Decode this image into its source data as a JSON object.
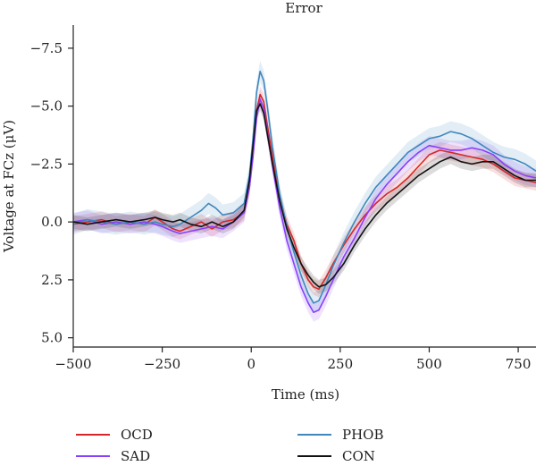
{
  "chart_data": {
    "type": "line",
    "title": "Error",
    "xlabel": "Time (ms)",
    "ylabel": "Voltage at FCz (μV)",
    "xlim": [
      -500,
      800
    ],
    "ylim": [
      -8.5,
      5.4
    ],
    "y_inverted": true,
    "grid": false,
    "legend_position": "bottom",
    "x_ticks": [
      -500,
      -250,
      0,
      250,
      500,
      750
    ],
    "x_tick_labels": [
      "−500",
      "−250",
      "0",
      "250",
      "500",
      "750"
    ],
    "y_ticks": [
      -7.5,
      -5.0,
      -2.5,
      0.0,
      2.5,
      5.0
    ],
    "y_tick_labels": [
      "−7.5",
      "−5.0",
      "−2.5",
      "0.0",
      "2.5",
      "5.0"
    ],
    "series": [
      {
        "name": "OCD",
        "color": "#d62728",
        "band": 0.35,
        "points": [
          [
            -500,
            0.1
          ],
          [
            -460,
            0.0
          ],
          [
            -420,
            -0.1
          ],
          [
            -380,
            0.1
          ],
          [
            -340,
            0.0
          ],
          [
            -300,
            0.1
          ],
          [
            -270,
            -0.2
          ],
          [
            -250,
            0.0
          ],
          [
            -220,
            0.3
          ],
          [
            -200,
            0.4
          ],
          [
            -170,
            0.2
          ],
          [
            -140,
            0.0
          ],
          [
            -110,
            0.3
          ],
          [
            -80,
            0.0
          ],
          [
            -50,
            -0.1
          ],
          [
            -20,
            -0.4
          ],
          [
            -5,
            -1.5
          ],
          [
            5,
            -3.0
          ],
          [
            15,
            -4.8
          ],
          [
            25,
            -5.5
          ],
          [
            35,
            -5.2
          ],
          [
            45,
            -4.2
          ],
          [
            60,
            -2.8
          ],
          [
            80,
            -1.0
          ],
          [
            100,
            0.1
          ],
          [
            120,
            0.8
          ],
          [
            140,
            1.8
          ],
          [
            160,
            2.5
          ],
          [
            175,
            2.8
          ],
          [
            190,
            2.9
          ],
          [
            210,
            2.4
          ],
          [
            230,
            1.8
          ],
          [
            260,
            1.0
          ],
          [
            290,
            0.3
          ],
          [
            320,
            -0.3
          ],
          [
            350,
            -0.8
          ],
          [
            380,
            -1.2
          ],
          [
            410,
            -1.5
          ],
          [
            440,
            -1.9
          ],
          [
            470,
            -2.4
          ],
          [
            500,
            -2.9
          ],
          [
            530,
            -3.1
          ],
          [
            560,
            -3.0
          ],
          [
            590,
            -2.9
          ],
          [
            620,
            -2.8
          ],
          [
            650,
            -2.7
          ],
          [
            680,
            -2.5
          ],
          [
            710,
            -2.2
          ],
          [
            740,
            -1.9
          ],
          [
            770,
            -1.8
          ],
          [
            800,
            -1.7
          ]
        ]
      },
      {
        "name": "SAD",
        "color": "#8a3ffc",
        "band": 0.4,
        "points": [
          [
            -500,
            0.0
          ],
          [
            -460,
            -0.1
          ],
          [
            -420,
            0.1
          ],
          [
            -380,
            0.0
          ],
          [
            -340,
            0.1
          ],
          [
            -300,
            0.0
          ],
          [
            -270,
            0.1
          ],
          [
            -250,
            0.2
          ],
          [
            -220,
            0.4
          ],
          [
            -200,
            0.5
          ],
          [
            -170,
            0.4
          ],
          [
            -140,
            0.3
          ],
          [
            -110,
            0.2
          ],
          [
            -80,
            0.3
          ],
          [
            -50,
            0.0
          ],
          [
            -20,
            -0.4
          ],
          [
            -5,
            -1.5
          ],
          [
            5,
            -2.8
          ],
          [
            15,
            -4.5
          ],
          [
            25,
            -5.3
          ],
          [
            35,
            -4.9
          ],
          [
            45,
            -3.9
          ],
          [
            60,
            -2.4
          ],
          [
            80,
            -0.6
          ],
          [
            100,
            0.8
          ],
          [
            120,
            1.8
          ],
          [
            140,
            2.8
          ],
          [
            160,
            3.5
          ],
          [
            175,
            3.9
          ],
          [
            190,
            3.8
          ],
          [
            210,
            3.2
          ],
          [
            230,
            2.5
          ],
          [
            260,
            1.5
          ],
          [
            290,
            0.7
          ],
          [
            320,
            -0.2
          ],
          [
            350,
            -1.0
          ],
          [
            380,
            -1.6
          ],
          [
            410,
            -2.1
          ],
          [
            440,
            -2.6
          ],
          [
            470,
            -3.0
          ],
          [
            500,
            -3.3
          ],
          [
            530,
            -3.2
          ],
          [
            560,
            -3.1
          ],
          [
            590,
            -3.1
          ],
          [
            620,
            -3.2
          ],
          [
            650,
            -3.1
          ],
          [
            680,
            -2.9
          ],
          [
            710,
            -2.5
          ],
          [
            740,
            -2.2
          ],
          [
            770,
            -2.0
          ],
          [
            800,
            -1.9
          ]
        ]
      },
      {
        "name": "PHOB",
        "color": "#3f87bd",
        "band": 0.45,
        "points": [
          [
            -500,
            0.1
          ],
          [
            -460,
            -0.1
          ],
          [
            -420,
            0.0
          ],
          [
            -380,
            0.1
          ],
          [
            -340,
            0.0
          ],
          [
            -300,
            0.1
          ],
          [
            -270,
            0.0
          ],
          [
            -250,
            0.1
          ],
          [
            -220,
            0.2
          ],
          [
            -200,
            0.1
          ],
          [
            -170,
            -0.2
          ],
          [
            -140,
            -0.5
          ],
          [
            -120,
            -0.8
          ],
          [
            -100,
            -0.6
          ],
          [
            -80,
            -0.3
          ],
          [
            -50,
            -0.4
          ],
          [
            -20,
            -0.8
          ],
          [
            -5,
            -2.0
          ],
          [
            5,
            -3.6
          ],
          [
            15,
            -5.6
          ],
          [
            25,
            -6.5
          ],
          [
            35,
            -6.1
          ],
          [
            45,
            -5.0
          ],
          [
            60,
            -3.2
          ],
          [
            80,
            -1.2
          ],
          [
            100,
            0.2
          ],
          [
            120,
            1.3
          ],
          [
            140,
            2.3
          ],
          [
            160,
            3.1
          ],
          [
            175,
            3.5
          ],
          [
            190,
            3.4
          ],
          [
            210,
            2.7
          ],
          [
            230,
            1.9
          ],
          [
            260,
            0.9
          ],
          [
            290,
            0.0
          ],
          [
            320,
            -0.8
          ],
          [
            350,
            -1.5
          ],
          [
            380,
            -2.0
          ],
          [
            410,
            -2.5
          ],
          [
            440,
            -3.0
          ],
          [
            470,
            -3.3
          ],
          [
            500,
            -3.6
          ],
          [
            530,
            -3.7
          ],
          [
            560,
            -3.9
          ],
          [
            590,
            -3.8
          ],
          [
            620,
            -3.6
          ],
          [
            650,
            -3.3
          ],
          [
            680,
            -3.0
          ],
          [
            710,
            -2.8
          ],
          [
            740,
            -2.7
          ],
          [
            770,
            -2.5
          ],
          [
            800,
            -2.2
          ]
        ]
      },
      {
        "name": "CON",
        "color": "#111111",
        "band": 0.3,
        "points": [
          [
            -500,
            0.0
          ],
          [
            -460,
            0.1
          ],
          [
            -420,
            0.0
          ],
          [
            -380,
            -0.1
          ],
          [
            -340,
            0.0
          ],
          [
            -300,
            -0.1
          ],
          [
            -270,
            -0.2
          ],
          [
            -250,
            -0.1
          ],
          [
            -220,
            0.0
          ],
          [
            -200,
            -0.1
          ],
          [
            -170,
            0.1
          ],
          [
            -140,
            0.2
          ],
          [
            -110,
            0.0
          ],
          [
            -80,
            0.2
          ],
          [
            -50,
            0.0
          ],
          [
            -20,
            -0.5
          ],
          [
            -5,
            -1.8
          ],
          [
            5,
            -3.3
          ],
          [
            15,
            -4.8
          ],
          [
            25,
            -5.1
          ],
          [
            35,
            -4.7
          ],
          [
            45,
            -3.8
          ],
          [
            60,
            -2.5
          ],
          [
            80,
            -0.9
          ],
          [
            100,
            0.3
          ],
          [
            120,
            1.1
          ],
          [
            140,
            1.8
          ],
          [
            160,
            2.3
          ],
          [
            175,
            2.6
          ],
          [
            190,
            2.8
          ],
          [
            210,
            2.7
          ],
          [
            230,
            2.4
          ],
          [
            260,
            1.8
          ],
          [
            290,
            1.0
          ],
          [
            320,
            0.3
          ],
          [
            350,
            -0.3
          ],
          [
            380,
            -0.8
          ],
          [
            410,
            -1.2
          ],
          [
            440,
            -1.6
          ],
          [
            470,
            -2.0
          ],
          [
            500,
            -2.3
          ],
          [
            530,
            -2.6
          ],
          [
            560,
            -2.8
          ],
          [
            590,
            -2.6
          ],
          [
            620,
            -2.5
          ],
          [
            650,
            -2.6
          ],
          [
            680,
            -2.6
          ],
          [
            710,
            -2.3
          ],
          [
            740,
            -2.0
          ],
          [
            770,
            -1.8
          ],
          [
            800,
            -1.8
          ]
        ]
      }
    ]
  }
}
